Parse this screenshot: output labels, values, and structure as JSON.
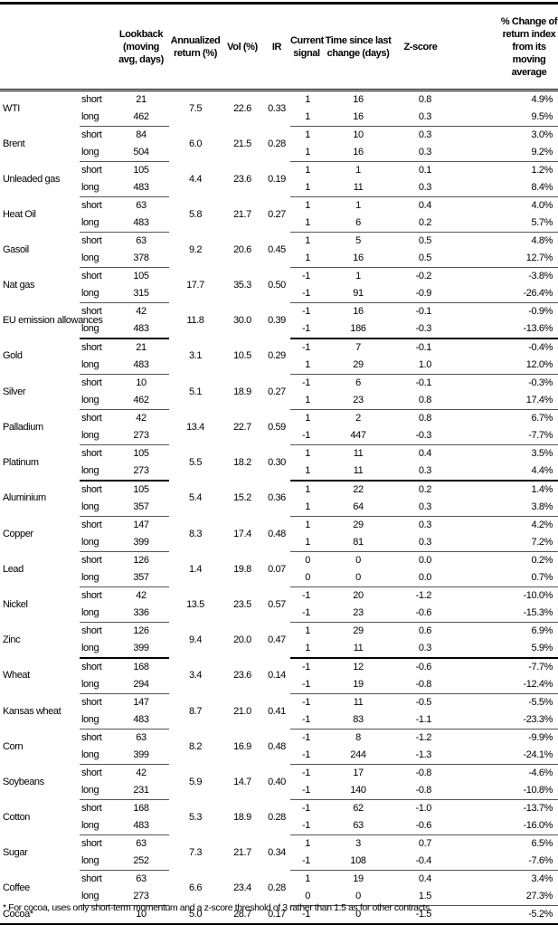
{
  "headers": [
    "",
    "",
    "Lookback (moving avg, days)",
    "Annualized return (%)",
    "Vol (%)",
    "IR",
    "Current signal",
    "Time since last change (days)",
    "Z-score",
    "% Change of return index from its moving average"
  ],
  "groups": [
    [
      {
        "name": "WTI",
        "ret": "7.5",
        "vol": "22.6",
        "ir": "0.33",
        "rows": [
          [
            "short",
            "21",
            "1",
            "16",
            "0.8",
            "4.9%"
          ],
          [
            "long",
            "462",
            "1",
            "16",
            "0.3",
            "9.5%"
          ]
        ]
      },
      {
        "name": "Brent",
        "ret": "6.0",
        "vol": "21.5",
        "ir": "0.28",
        "rows": [
          [
            "short",
            "84",
            "1",
            "10",
            "0.3",
            "3.0%"
          ],
          [
            "long",
            "504",
            "1",
            "16",
            "0.3",
            "9.2%"
          ]
        ]
      },
      {
        "name": "Unleaded gas",
        "ret": "4.4",
        "vol": "23.6",
        "ir": "0.19",
        "rows": [
          [
            "short",
            "105",
            "1",
            "1",
            "0.1",
            "1.2%"
          ],
          [
            "long",
            "483",
            "1",
            "11",
            "0.3",
            "8.4%"
          ]
        ]
      },
      {
        "name": "Heat Oil",
        "ret": "5.8",
        "vol": "21.7",
        "ir": "0.27",
        "rows": [
          [
            "short",
            "63",
            "1",
            "1",
            "0.4",
            "4.0%"
          ],
          [
            "long",
            "483",
            "1",
            "6",
            "0.2",
            "5.7%"
          ]
        ]
      },
      {
        "name": "Gasoil",
        "ret": "9.2",
        "vol": "20.6",
        "ir": "0.45",
        "rows": [
          [
            "short",
            "63",
            "1",
            "5",
            "0.5",
            "4.8%"
          ],
          [
            "long",
            "378",
            "1",
            "16",
            "0.5",
            "12.7%"
          ]
        ]
      },
      {
        "name": "Nat gas",
        "ret": "17.7",
        "vol": "35.3",
        "ir": "0.50",
        "rows": [
          [
            "short",
            "105",
            "-1",
            "1",
            "-0.2",
            "-3.8%"
          ],
          [
            "long",
            "315",
            "-1",
            "91",
            "-0.9",
            "-26.4%"
          ]
        ]
      },
      {
        "name": "EU emission allowances",
        "ret": "11.8",
        "vol": "30.0",
        "ir": "0.39",
        "rows": [
          [
            "short",
            "42",
            "-1",
            "16",
            "-0.1",
            "-0.9%"
          ],
          [
            "long",
            "483",
            "-1",
            "186",
            "-0.3",
            "-13.6%"
          ]
        ]
      }
    ],
    [
      {
        "name": "Gold",
        "ret": "3.1",
        "vol": "10.5",
        "ir": "0.29",
        "rows": [
          [
            "short",
            "21",
            "-1",
            "7",
            "-0.1",
            "-0.4%"
          ],
          [
            "long",
            "483",
            "1",
            "29",
            "1.0",
            "12.0%"
          ]
        ]
      },
      {
        "name": "Silver",
        "ret": "5.1",
        "vol": "18.9",
        "ir": "0.27",
        "rows": [
          [
            "short",
            "10",
            "-1",
            "6",
            "-0.1",
            "-0.3%"
          ],
          [
            "long",
            "462",
            "1",
            "23",
            "0.8",
            "17.4%"
          ]
        ]
      },
      {
        "name": "Palladium",
        "ret": "13.4",
        "vol": "22.7",
        "ir": "0.59",
        "rows": [
          [
            "short",
            "42",
            "1",
            "2",
            "0.8",
            "6.7%"
          ],
          [
            "long",
            "273",
            "-1",
            "447",
            "-0.3",
            "-7.7%"
          ]
        ]
      },
      {
        "name": "Platinum",
        "ret": "5.5",
        "vol": "18.2",
        "ir": "0.30",
        "rows": [
          [
            "short",
            "105",
            "1",
            "11",
            "0.4",
            "3.5%"
          ],
          [
            "long",
            "273",
            "1",
            "11",
            "0.3",
            "4.4%"
          ]
        ]
      }
    ],
    [
      {
        "name": "Aluminium",
        "ret": "5.4",
        "vol": "15.2",
        "ir": "0.36",
        "rows": [
          [
            "short",
            "105",
            "1",
            "22",
            "0.2",
            "1.4%"
          ],
          [
            "long",
            "357",
            "1",
            "64",
            "0.3",
            "3.8%"
          ]
        ]
      },
      {
        "name": "Copper",
        "ret": "8.3",
        "vol": "17.4",
        "ir": "0.48",
        "rows": [
          [
            "short",
            "147",
            "1",
            "29",
            "0.3",
            "4.2%"
          ],
          [
            "long",
            "399",
            "1",
            "81",
            "0.3",
            "7.2%"
          ]
        ]
      },
      {
        "name": "Lead",
        "ret": "1.4",
        "vol": "19.8",
        "ir": "0.07",
        "rows": [
          [
            "short",
            "126",
            "0",
            "0",
            "0.0",
            "0.2%"
          ],
          [
            "long",
            "357",
            "0",
            "0",
            "0.0",
            "0.7%"
          ]
        ]
      },
      {
        "name": "Nickel",
        "ret": "13.5",
        "vol": "23.5",
        "ir": "0.57",
        "rows": [
          [
            "short",
            "42",
            "-1",
            "20",
            "-1.2",
            "-10.0%"
          ],
          [
            "long",
            "336",
            "-1",
            "23",
            "-0.6",
            "-15.3%"
          ]
        ]
      },
      {
        "name": "Zinc",
        "ret": "9.4",
        "vol": "20.0",
        "ir": "0.47",
        "rows": [
          [
            "short",
            "126",
            "1",
            "29",
            "0.6",
            "6.9%"
          ],
          [
            "long",
            "399",
            "1",
            "11",
            "0.3",
            "5.9%"
          ]
        ]
      }
    ],
    [
      {
        "name": "Wheat",
        "ret": "3.4",
        "vol": "23.6",
        "ir": "0.14",
        "rows": [
          [
            "short",
            "168",
            "-1",
            "12",
            "-0.6",
            "-7.7%"
          ],
          [
            "long",
            "294",
            "-1",
            "19",
            "-0.8",
            "-12.4%"
          ]
        ]
      },
      {
        "name": "Kansas wheat",
        "ret": "8.7",
        "vol": "21.0",
        "ir": "0.41",
        "rows": [
          [
            "short",
            "147",
            "-1",
            "11",
            "-0.5",
            "-5.5%"
          ],
          [
            "long",
            "483",
            "-1",
            "83",
            "-1.1",
            "-23.3%"
          ]
        ]
      },
      {
        "name": "Corn",
        "ret": "8.2",
        "vol": "16.9",
        "ir": "0.48",
        "rows": [
          [
            "short",
            "63",
            "-1",
            "8",
            "-1.2",
            "-9.9%"
          ],
          [
            "long",
            "399",
            "-1",
            "244",
            "-1.3",
            "-24.1%"
          ]
        ]
      },
      {
        "name": "Soybeans",
        "ret": "5.9",
        "vol": "14.7",
        "ir": "0.40",
        "rows": [
          [
            "short",
            "42",
            "-1",
            "17",
            "-0.8",
            "-4.6%"
          ],
          [
            "long",
            "231",
            "-1",
            "140",
            "-0.8",
            "-10.8%"
          ]
        ]
      },
      {
        "name": "Cotton",
        "ret": "5.3",
        "vol": "18.9",
        "ir": "0.28",
        "rows": [
          [
            "short",
            "168",
            "-1",
            "62",
            "-1.0",
            "-13.7%"
          ],
          [
            "long",
            "483",
            "-1",
            "63",
            "-0.6",
            "-16.0%"
          ]
        ]
      },
      {
        "name": "Sugar",
        "ret": "7.3",
        "vol": "21.7",
        "ir": "0.34",
        "rows": [
          [
            "short",
            "63",
            "1",
            "3",
            "0.7",
            "6.5%"
          ],
          [
            "long",
            "252",
            "-1",
            "108",
            "-0.4",
            "-7.6%"
          ]
        ]
      },
      {
        "name": "Coffee",
        "ret": "6.6",
        "vol": "23.4",
        "ir": "0.28",
        "rows": [
          [
            "short",
            "63",
            "1",
            "19",
            "0.4",
            "3.4%"
          ],
          [
            "long",
            "273",
            "0",
            "0",
            "1.5",
            "27.3%"
          ]
        ]
      },
      {
        "name": "Cocoa*",
        "ret": "5.0",
        "vol": "28.7",
        "ir": "0.17",
        "rows": [
          [
            "",
            "10",
            "-1",
            "0",
            "-1.5",
            "-5.2%"
          ]
        ]
      }
    ]
  ],
  "footnote": "* For cocoa, uses only short-term momentum and a z-score threshold of 3 rather than 1.5 as for other contracts."
}
